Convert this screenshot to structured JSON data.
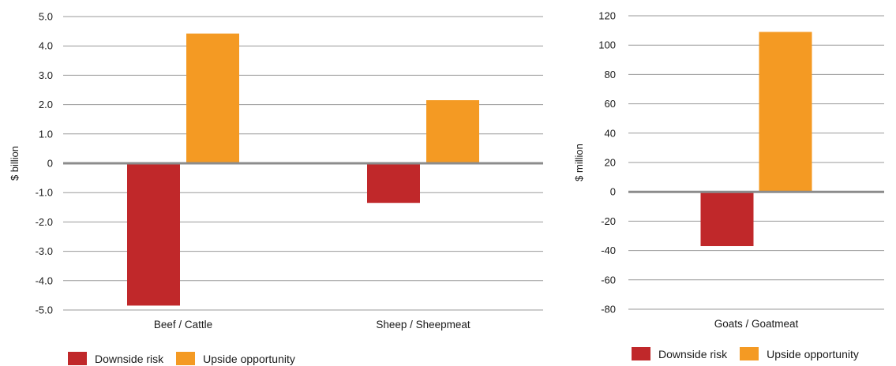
{
  "chart_data": [
    {
      "type": "bar",
      "ylabel": "$ billion",
      "categories": [
        "Beef / Cattle",
        "Sheep / Sheepmeat"
      ],
      "ylim": [
        -5.0,
        5.0
      ],
      "yticks": [
        "5.0",
        "4.0",
        "3.0",
        "2.0",
        "1.0",
        "0",
        "-1.0",
        "-2.0",
        "-3.0",
        "-4.0",
        "-5.0"
      ],
      "series": [
        {
          "name": "Downside risk",
          "values": [
            -4.85,
            -1.35
          ],
          "color": "#c0282a"
        },
        {
          "name": "Upside opportunity",
          "values": [
            4.42,
            2.15
          ],
          "color": "#f49a23"
        }
      ],
      "legend": "bottom-left",
      "grid": true
    },
    {
      "type": "bar",
      "ylabel": "$ million",
      "categories": [
        "Goats / Goatmeat"
      ],
      "ylim": [
        -80,
        120
      ],
      "yticks": [
        "120",
        "100",
        "80",
        "60",
        "40",
        "20",
        "0",
        "-20",
        "-40",
        "-60",
        "-80"
      ],
      "series": [
        {
          "name": "Downside risk",
          "values": [
            -37
          ],
          "color": "#c0282a"
        },
        {
          "name": "Upside opportunity",
          "values": [
            109
          ],
          "color": "#f49a23"
        }
      ],
      "legend": "bottom-right",
      "grid": true
    }
  ],
  "legend_left": {
    "downside": "Downside risk",
    "upside": "Upside opportunity"
  },
  "legend_right": {
    "downside": "Downside risk",
    "upside": "Upside opportunity"
  },
  "colors": {
    "downside": "#c0282a",
    "upside": "#f49a23",
    "grid": "#9a9a9a",
    "zero_line": "#8c8c8c"
  }
}
